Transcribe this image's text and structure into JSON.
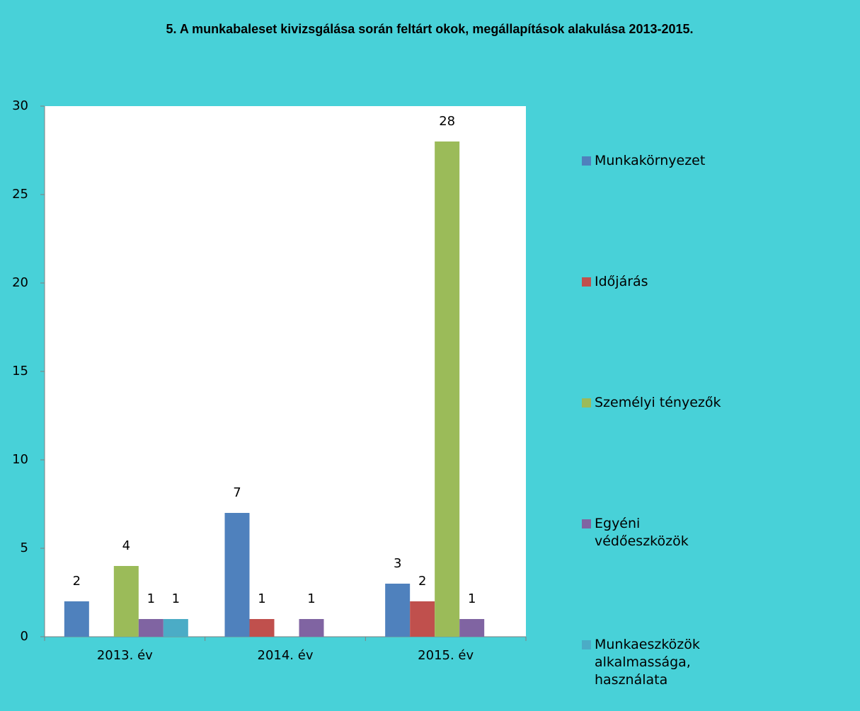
{
  "chart_data": {
    "type": "bar",
    "title": "5. A munkabaleset kivizsgálása során feltárt okok, megállapítások alakulása 2013-2015.",
    "categories": [
      "2013. év",
      "2014. év",
      "2015. év"
    ],
    "series": [
      {
        "name": "Munkakörnyezet",
        "color": "#4f81bd",
        "values": [
          2,
          7,
          3
        ]
      },
      {
        "name": "Időjárás",
        "color": "#c0504d",
        "values": [
          null,
          1,
          2
        ]
      },
      {
        "name": "Személyi tényezők",
        "color": "#9bbb59",
        "values": [
          4,
          null,
          28
        ]
      },
      {
        "name": "Egyéni védőeszközök",
        "color": "#8064a2",
        "values": [
          1,
          1,
          1
        ]
      },
      {
        "name": "Munkaeszközök alkalmassága, használata",
        "color": "#4bacc6",
        "values": [
          1,
          null,
          null
        ]
      }
    ],
    "ylim": [
      0,
      30
    ],
    "yticks": [
      0,
      5,
      10,
      15,
      20,
      25,
      30
    ],
    "legend": "right"
  }
}
